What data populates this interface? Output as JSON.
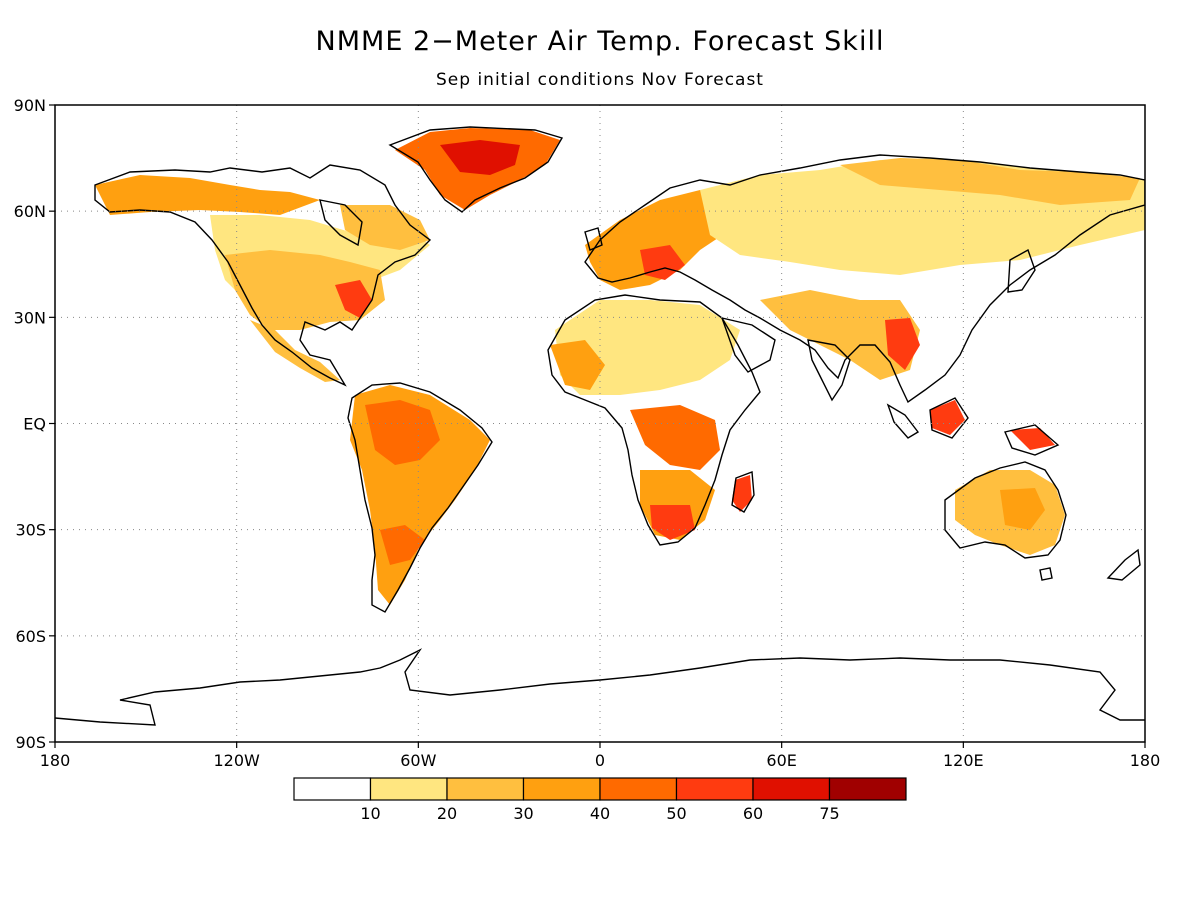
{
  "title": "NMME 2−Meter Air Temp. Forecast Skill",
  "subtitle": "Sep initial conditions   Nov Forecast",
  "map": {
    "projection": "equirectangular",
    "lon_range": [
      -180,
      180
    ],
    "lat_range": [
      -90,
      90
    ],
    "grid": "dotted",
    "lat_ticks": [
      {
        "value": 90,
        "label": "90N"
      },
      {
        "value": 60,
        "label": "60N"
      },
      {
        "value": 30,
        "label": "30N"
      },
      {
        "value": 0,
        "label": "EQ"
      },
      {
        "value": -30,
        "label": "30S"
      },
      {
        "value": -60,
        "label": "60S"
      },
      {
        "value": -90,
        "label": "90S"
      }
    ],
    "lon_ticks": [
      {
        "value": -180,
        "label": "180"
      },
      {
        "value": -120,
        "label": "120W"
      },
      {
        "value": -60,
        "label": "60W"
      },
      {
        "value": 0,
        "label": "0"
      },
      {
        "value": 60,
        "label": "60E"
      },
      {
        "value": 120,
        "label": "120E"
      },
      {
        "value": 180,
        "label": "180"
      }
    ]
  },
  "colorbar": {
    "bins": [
      {
        "color": "#ffffff",
        "label": ""
      },
      {
        "color": "#ffe680",
        "label": "10"
      },
      {
        "color": "#ffbf3f",
        "label": "20"
      },
      {
        "color": "#ffa010",
        "label": "30"
      },
      {
        "color": "#ff6a00",
        "label": "40"
      },
      {
        "color": "#ff3b10",
        "label": "50"
      },
      {
        "color": "#e01000",
        "label": "60"
      },
      {
        "color": "#a00000",
        "label": "75"
      }
    ]
  }
}
